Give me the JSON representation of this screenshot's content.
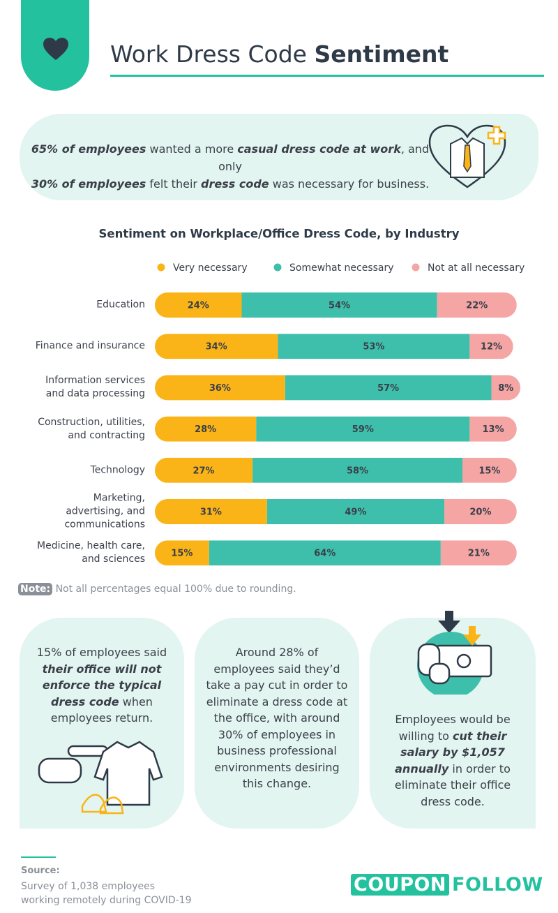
{
  "header": {
    "title": "Work Dress Code ",
    "title_bold": "Sentiment"
  },
  "intro": [
    "65% of employees",
    " wanted a more ",
    "casual dress code at work",
    ", and only ",
    "30% of employees",
    " felt their ",
    "dress code",
    " was necessary for business."
  ],
  "chart_data": {
    "type": "stacked-bar-horizontal",
    "title": "Sentiment on Workplace/Office Dress Code, by Industry",
    "categories": [
      "Education",
      "Finance and insurance",
      "Information services and data processing",
      "Construction, utilities, and contracting",
      "Technology",
      "Marketing, advertising, and communications",
      "Medicine, health care, and sciences"
    ],
    "series": [
      {
        "name": "Very necessary",
        "color": "#fbb417",
        "values": [
          24,
          34,
          36,
          28,
          27,
          31,
          15
        ],
        "value_labels": [
          "24%",
          "34%",
          "36%",
          "28%",
          "27%",
          "31%",
          "15%"
        ]
      },
      {
        "name": "Somewhat necessary",
        "color": "#3ebfab",
        "values": [
          54,
          53,
          57,
          59,
          58,
          49,
          64
        ],
        "value_labels": [
          "54%",
          "53%",
          "57%",
          "59%",
          "58%",
          "49%",
          "64%"
        ]
      },
      {
        "name": "Not at all necessary",
        "color": "#f4a5a4",
        "values": [
          22,
          12,
          8,
          13,
          15,
          20,
          21
        ],
        "value_labels": [
          "22%",
          "12%",
          "8%",
          "13%",
          "15%",
          "20%",
          "21%"
        ]
      }
    ]
  },
  "note": {
    "label": "Note:",
    "text": "Not all percentages equal 100% due to rounding."
  },
  "cards": [
    [
      "15% of employees said ",
      "their office will not enforce the typical dress code",
      " when employees return."
    ],
    [
      "Around 28% of employees said they’d take a pay cut in order to eliminate a dress code at the office, with around 30% of employees in business professional environments desiring this change."
    ],
    [
      "Employees would be willing to ",
      "cut their salary by $1,057 annually",
      " in order to eliminate their office dress code."
    ]
  ],
  "source": {
    "label": "Source:",
    "text": "Survey of 1,038 employees working remotely during COVID-19"
  },
  "logo": {
    "left": "COUPON",
    "right": "FOLLOW"
  }
}
